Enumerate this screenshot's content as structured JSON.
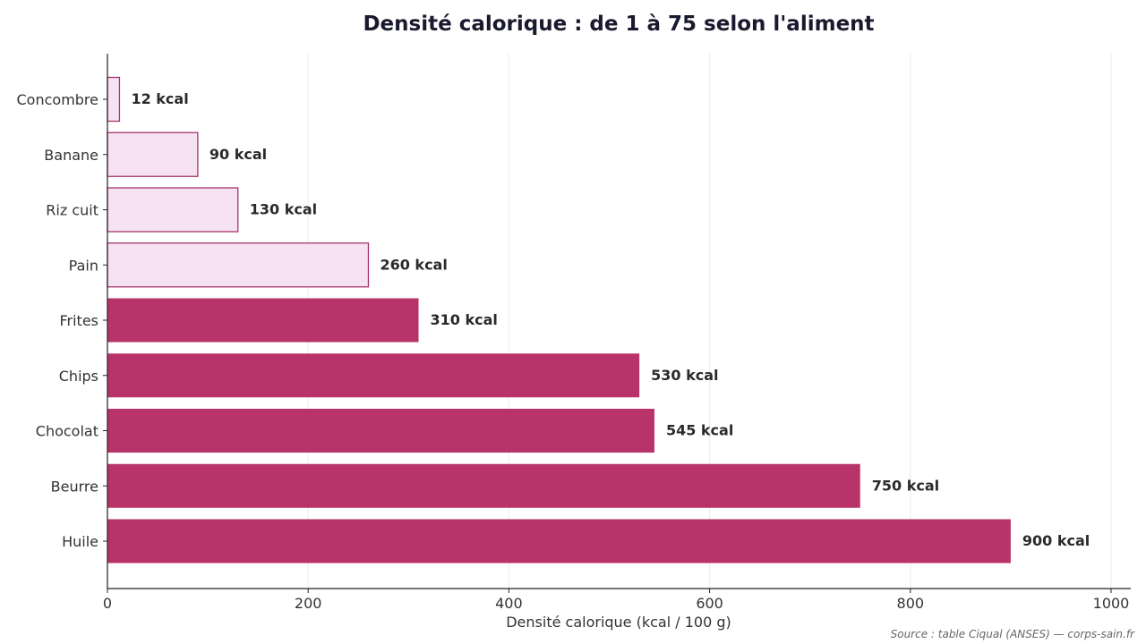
{
  "colors": {
    "high": "#b83369",
    "low_fill": "#f5e3f3",
    "low_stroke": "#a8336c",
    "grid": "#ebebeb",
    "axis": "#222222"
  },
  "chart_data": {
    "type": "bar",
    "orientation": "horizontal",
    "title": "Densité calorique : de 1 à 75 selon l'aliment",
    "xlabel": "Densité calorique (kcal / 100 g)",
    "ylabel": "",
    "xlim": [
      0,
      1000
    ],
    "x_ticks": [
      0,
      200,
      400,
      600,
      800,
      1000
    ],
    "grid": "vertical",
    "categories": [
      "Concombre",
      "Banane",
      "Riz cuit",
      "Pain",
      "Frites",
      "Chips",
      "Chocolat",
      "Beurre",
      "Huile"
    ],
    "values": [
      12,
      90,
      130,
      260,
      310,
      530,
      545,
      750,
      900
    ],
    "value_labels": [
      "12 kcal",
      "90 kcal",
      "130 kcal",
      "260 kcal",
      "310 kcal",
      "530 kcal",
      "545 kcal",
      "750 kcal",
      "900 kcal"
    ],
    "styles": [
      "low",
      "low",
      "low",
      "low",
      "high",
      "high",
      "high",
      "high",
      "high"
    ],
    "source": "Source : table Ciqual (ANSES) — corps-sain.fr"
  }
}
